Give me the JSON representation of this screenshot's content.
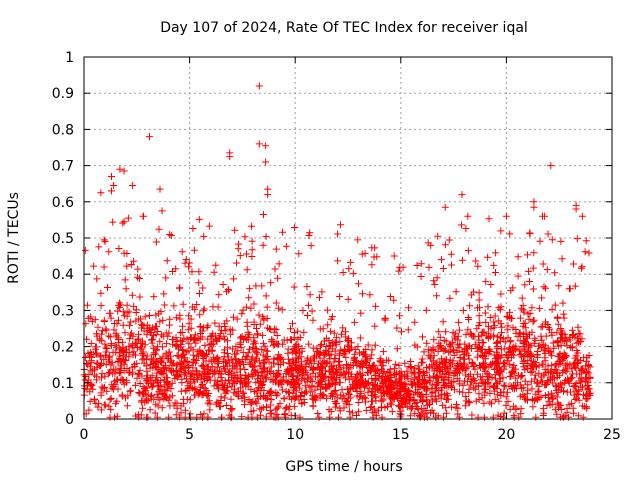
{
  "chart_data": {
    "type": "scatter",
    "title": "Day 107 of 2024, Rate Of TEC Index for receiver iqal",
    "xlabel": "GPS time / hours",
    "ylabel": "ROTI / TECUs",
    "xlim": [
      0,
      25
    ],
    "ylim": [
      0,
      1
    ],
    "xticks": [
      0,
      5,
      10,
      15,
      20,
      25
    ],
    "yticks": [
      0,
      0.1,
      0.2,
      0.3,
      0.4,
      0.5,
      0.6,
      0.7,
      0.8,
      0.9,
      1
    ],
    "grid": true,
    "marker": "+",
    "color": "#ff0000",
    "series_name": "ROTI",
    "x_span": [
      0,
      24
    ],
    "density_profile": [
      {
        "x": 0.0,
        "median": 0.09,
        "spread": 0.05
      },
      {
        "x": 1.0,
        "median": 0.15,
        "spread": 0.09
      },
      {
        "x": 2.0,
        "median": 0.17,
        "spread": 0.1
      },
      {
        "x": 3.0,
        "median": 0.15,
        "spread": 0.09
      },
      {
        "x": 4.0,
        "median": 0.13,
        "spread": 0.08
      },
      {
        "x": 5.0,
        "median": 0.13,
        "spread": 0.09
      },
      {
        "x": 6.0,
        "median": 0.14,
        "spread": 0.08
      },
      {
        "x": 7.0,
        "median": 0.13,
        "spread": 0.08
      },
      {
        "x": 8.0,
        "median": 0.14,
        "spread": 0.09
      },
      {
        "x": 9.0,
        "median": 0.13,
        "spread": 0.08
      },
      {
        "x": 10.0,
        "median": 0.12,
        "spread": 0.07
      },
      {
        "x": 11.0,
        "median": 0.11,
        "spread": 0.07
      },
      {
        "x": 12.0,
        "median": 0.13,
        "spread": 0.08
      },
      {
        "x": 13.0,
        "median": 0.11,
        "spread": 0.06
      },
      {
        "x": 14.0,
        "median": 0.1,
        "spread": 0.05
      },
      {
        "x": 15.0,
        "median": 0.07,
        "spread": 0.04
      },
      {
        "x": 16.0,
        "median": 0.08,
        "spread": 0.05
      },
      {
        "x": 17.0,
        "median": 0.12,
        "spread": 0.07
      },
      {
        "x": 18.0,
        "median": 0.14,
        "spread": 0.09
      },
      {
        "x": 19.0,
        "median": 0.14,
        "spread": 0.08
      },
      {
        "x": 20.0,
        "median": 0.15,
        "spread": 0.09
      },
      {
        "x": 21.0,
        "median": 0.16,
        "spread": 0.1
      },
      {
        "x": 22.0,
        "median": 0.14,
        "spread": 0.09
      },
      {
        "x": 23.0,
        "median": 0.13,
        "spread": 0.09
      },
      {
        "x": 24.0,
        "median": 0.1,
        "spread": 0.06
      }
    ],
    "notable_points": [
      {
        "x": 8.3,
        "y": 0.92
      },
      {
        "x": 3.1,
        "y": 0.78
      },
      {
        "x": 8.3,
        "y": 0.76
      },
      {
        "x": 8.6,
        "y": 0.755
      },
      {
        "x": 6.9,
        "y": 0.735
      },
      {
        "x": 6.9,
        "y": 0.725
      },
      {
        "x": 8.6,
        "y": 0.71
      },
      {
        "x": 22.1,
        "y": 0.7
      },
      {
        "x": 1.7,
        "y": 0.69
      },
      {
        "x": 1.9,
        "y": 0.685
      },
      {
        "x": 1.3,
        "y": 0.67
      },
      {
        "x": 1.4,
        "y": 0.645
      },
      {
        "x": 2.3,
        "y": 0.645
      },
      {
        "x": 3.6,
        "y": 0.635
      },
      {
        "x": 1.3,
        "y": 0.63
      },
      {
        "x": 8.7,
        "y": 0.635
      },
      {
        "x": 8.7,
        "y": 0.62
      },
      {
        "x": 0.8,
        "y": 0.625
      },
      {
        "x": 17.9,
        "y": 0.62
      },
      {
        "x": 21.3,
        "y": 0.6
      },
      {
        "x": 21.3,
        "y": 0.585
      },
      {
        "x": 23.3,
        "y": 0.59
      },
      {
        "x": 23.3,
        "y": 0.58
      },
      {
        "x": 17.1,
        "y": 0.585
      },
      {
        "x": 3.7,
        "y": 0.575
      },
      {
        "x": 8.5,
        "y": 0.565
      },
      {
        "x": 23.6,
        "y": 0.56
      },
      {
        "x": 20.0,
        "y": 0.56
      },
      {
        "x": 1.9,
        "y": 0.545
      },
      {
        "x": 2.1,
        "y": 0.555
      }
    ]
  }
}
